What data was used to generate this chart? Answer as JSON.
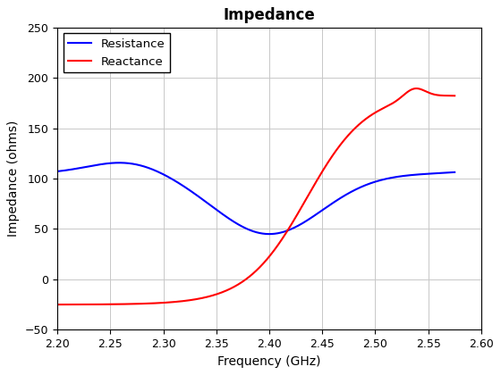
{
  "title": "Impedance",
  "xlabel": "Frequency (GHz)",
  "ylabel": "Impedance (ohms)",
  "xlim": [
    2.2,
    2.6
  ],
  "ylim": [
    -50,
    250
  ],
  "xticks": [
    2.2,
    2.25,
    2.3,
    2.35,
    2.4,
    2.45,
    2.5,
    2.55,
    2.6
  ],
  "yticks": [
    -50,
    0,
    50,
    100,
    150,
    200,
    250
  ],
  "resistance_color": "#0000FF",
  "reactance_color": "#FF0000",
  "line_width": 1.5,
  "legend_labels": [
    "Resistance",
    "Reactance"
  ],
  "background_color": "#FFFFFF",
  "grid_color": "#C8C8C8",
  "title_fontsize": 12,
  "label_fontsize": 10,
  "tick_fontsize": 9
}
